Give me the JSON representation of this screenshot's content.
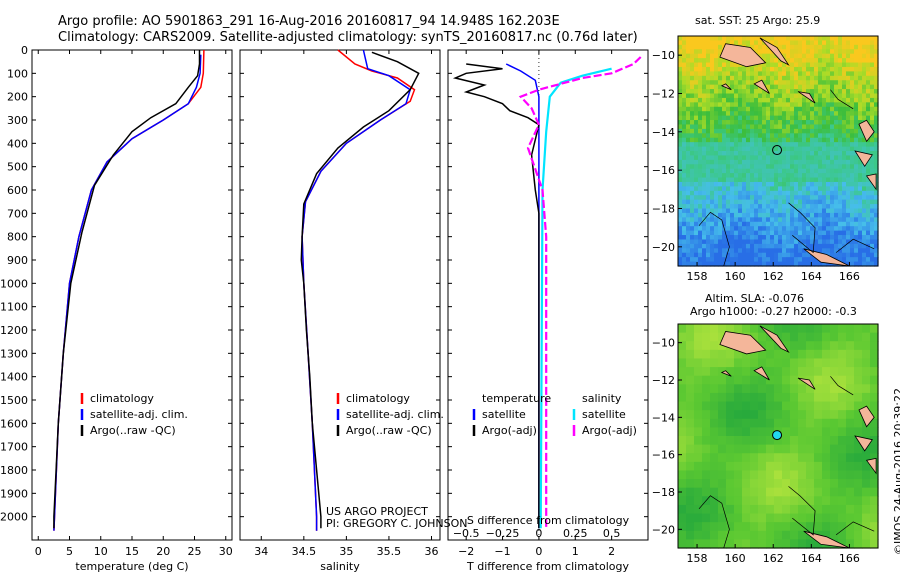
{
  "header": {
    "line1": "Argo profile: AO 5901863_291 16-Aug-2016 20160817_94 14.948S 162.203E",
    "line2": "Climatology: CARS2009. Satellite-adjusted climatology: synTS_20160817.nc (0.76d later)"
  },
  "credit": {
    "line1": "US ARGO PROJECT",
    "line2": "PI: GREGORY C. JOHNSON"
  },
  "timestamp": "©IMOS 24-Aug-2016 20:39:22",
  "colors": {
    "climatology": "#ff0000",
    "satellite": "#0000ff",
    "argo": "#000000",
    "sal_sat": "#00e5ff",
    "sal_argo": "#ff00ff"
  },
  "chart_data": [
    {
      "type": "line",
      "name": "temperature-profile",
      "xlabel": "temperature (deg C)",
      "xlim": [
        -1,
        31
      ],
      "ylim": [
        2100,
        0
      ],
      "xticks": [
        0,
        5,
        10,
        15,
        20,
        25,
        30
      ],
      "yticks": [
        0,
        100,
        200,
        300,
        400,
        500,
        600,
        700,
        800,
        900,
        1000,
        1100,
        1200,
        1300,
        1400,
        1500,
        1600,
        1700,
        1800,
        1900,
        2000
      ],
      "legend": [
        "climatology",
        "satellite-adj. clim.",
        "Argo(..raw -QC)"
      ],
      "series": [
        {
          "name": "climatology",
          "color": "#ff0000",
          "points": [
            [
              26.5,
              0
            ],
            [
              26.4,
              100
            ],
            [
              26,
              160
            ],
            [
              24,
              230
            ],
            [
              20,
              300
            ],
            [
              15,
              380
            ],
            [
              11,
              480
            ],
            [
              8.5,
              600
            ],
            [
              6.5,
              800
            ],
            [
              5,
              1000
            ],
            [
              4,
              1300
            ],
            [
              3.2,
              1600
            ],
            [
              2.6,
              2000
            ],
            [
              2.5,
              2060
            ]
          ]
        },
        {
          "name": "satellite-adj. clim.",
          "color": "#0000ff",
          "points": [
            [
              26,
              20
            ],
            [
              25.9,
              100
            ],
            [
              25.3,
              160
            ],
            [
              24,
              230
            ],
            [
              20,
              300
            ],
            [
              15,
              380
            ],
            [
              11,
              480
            ],
            [
              8.5,
              600
            ],
            [
              6.5,
              800
            ],
            [
              5,
              1000
            ],
            [
              4,
              1300
            ],
            [
              3.2,
              1600
            ],
            [
              2.6,
              2000
            ],
            [
              2.5,
              2060
            ]
          ]
        },
        {
          "name": "Argo(..raw -QC)",
          "color": "#000000",
          "points": [
            [
              25.8,
              0
            ],
            [
              25.8,
              60
            ],
            [
              25.5,
              110
            ],
            [
              24,
              160
            ],
            [
              22,
              230
            ],
            [
              18,
              290
            ],
            [
              15,
              350
            ],
            [
              12,
              450
            ],
            [
              9,
              580
            ],
            [
              7,
              780
            ],
            [
              5.2,
              1000
            ],
            [
              4,
              1300
            ],
            [
              3.2,
              1600
            ],
            [
              2.5,
              2000
            ],
            [
              2.5,
              2050
            ]
          ]
        }
      ]
    },
    {
      "type": "line",
      "name": "salinity-profile",
      "xlabel": "salinity",
      "xlim": [
        33.75,
        36.1
      ],
      "ylim": [
        2100,
        0
      ],
      "xticks": [
        34,
        34.5,
        35,
        35.5,
        36
      ],
      "legend": [
        "climatology",
        "satellite-adj. clim.",
        "Argo(..raw -QC)"
      ],
      "series": [
        {
          "name": "climatology",
          "color": "#ff0000",
          "points": [
            [
              34.9,
              0
            ],
            [
              35.1,
              60
            ],
            [
              35.3,
              90
            ],
            [
              35.6,
              120
            ],
            [
              35.8,
              170
            ],
            [
              35.75,
              220
            ],
            [
              35.4,
              300
            ],
            [
              35,
              400
            ],
            [
              34.7,
              520
            ],
            [
              34.52,
              650
            ],
            [
              34.48,
              800
            ],
            [
              34.5,
              1000
            ],
            [
              34.55,
              1300
            ],
            [
              34.6,
              1600
            ],
            [
              34.65,
              2000
            ],
            [
              34.65,
              2060
            ]
          ]
        },
        {
          "name": "satellite-adj. clim.",
          "color": "#0000ff",
          "points": [
            [
              35.2,
              0
            ],
            [
              35.25,
              80
            ],
            [
              35.5,
              110
            ],
            [
              35.75,
              170
            ],
            [
              35.7,
              230
            ],
            [
              35.4,
              300
            ],
            [
              35,
              400
            ],
            [
              34.7,
              520
            ],
            [
              34.52,
              650
            ],
            [
              34.48,
              800
            ],
            [
              34.5,
              1000
            ],
            [
              34.55,
              1300
            ],
            [
              34.6,
              1600
            ],
            [
              34.65,
              2000
            ],
            [
              34.65,
              2060
            ]
          ]
        },
        {
          "name": "Argo(..raw -QC)",
          "color": "#000000",
          "points": [
            [
              35.3,
              10
            ],
            [
              35.6,
              50
            ],
            [
              35.85,
              100
            ],
            [
              35.75,
              170
            ],
            [
              35.5,
              260
            ],
            [
              35.2,
              330
            ],
            [
              34.9,
              420
            ],
            [
              34.65,
              530
            ],
            [
              34.5,
              660
            ],
            [
              34.48,
              800
            ],
            [
              34.47,
              900
            ],
            [
              34.5,
              1000
            ],
            [
              34.53,
              1200
            ],
            [
              34.57,
              1400
            ],
            [
              34.6,
              1600
            ],
            [
              34.65,
              1800
            ],
            [
              34.7,
              2000
            ],
            [
              34.7,
              2050
            ]
          ]
        }
      ]
    },
    {
      "type": "line",
      "name": "difference-profile",
      "xlabel": "T difference from climatology",
      "xlabel_top": "S difference from climatology",
      "xlim": [
        -2.5,
        3
      ],
      "ylim": [
        2100,
        0
      ],
      "xticks": [
        -2,
        -1,
        0,
        1,
        2
      ],
      "xticks_top": [
        -0.5,
        -0.25,
        0,
        0.25,
        0.5
      ],
      "legend_left": {
        "title": "temperature",
        "items": [
          "satellite",
          "Argo(-adj)"
        ]
      },
      "legend_right": {
        "title": "salinity",
        "items": [
          "satellite",
          "Argo(-adj)"
        ]
      },
      "series": [
        {
          "name": "temperature satellite",
          "color": "#0000ff",
          "points": [
            [
              -0.9,
              60
            ],
            [
              -0.5,
              90
            ],
            [
              -0.1,
              130
            ],
            [
              0,
              200
            ],
            [
              0,
              500
            ],
            [
              0,
              2050
            ]
          ]
        },
        {
          "name": "temperature Argo(-adj)",
          "color": "#000000",
          "points": [
            [
              -2,
              60
            ],
            [
              -1,
              80
            ],
            [
              -2,
              100
            ],
            [
              -2.3,
              120
            ],
            [
              -1.5,
              150
            ],
            [
              -2,
              180
            ],
            [
              -1.5,
              200
            ],
            [
              -1,
              230
            ],
            [
              -0.8,
              260
            ],
            [
              -0.3,
              290
            ],
            [
              0,
              320
            ],
            [
              -0.2,
              450
            ],
            [
              -0.1,
              600
            ],
            [
              0,
              700
            ],
            [
              0,
              2050
            ]
          ]
        },
        {
          "name": "salinity satellite",
          "color": "#00e5ff",
          "points": [
            [
              2,
              80
            ],
            [
              1.2,
              110
            ],
            [
              0.6,
              140
            ],
            [
              0.3,
              200
            ],
            [
              0.2,
              350
            ],
            [
              0.1,
              600
            ],
            [
              0.05,
              2050
            ]
          ]
        },
        {
          "name": "salinity Argo(-adj)",
          "color": "#ff00ff",
          "points": [
            [
              2.8,
              30
            ],
            [
              2.6,
              60
            ],
            [
              2,
              100
            ],
            [
              1.2,
              120
            ],
            [
              0,
              170
            ],
            [
              -0.5,
              200
            ],
            [
              -0.2,
              250
            ],
            [
              0,
              320
            ],
            [
              -0.3,
              420
            ],
            [
              0.1,
              600
            ],
            [
              0.2,
              800
            ],
            [
              0.2,
              2050
            ]
          ]
        }
      ]
    },
    {
      "type": "heatmap",
      "name": "sst-map",
      "title": "sat. SST: 25 Argo: 25.9",
      "xlim": [
        157,
        167.5
      ],
      "ylim": [
        -21,
        -9
      ],
      "xticks": [
        158,
        160,
        162,
        164,
        166
      ],
      "yticks": [
        -10,
        -12,
        -14,
        -16,
        -18,
        -20
      ],
      "float_position": [
        162.2,
        -14.95
      ]
    },
    {
      "type": "heatmap",
      "name": "sla-map",
      "title_line1": "Altim. SLA: -0.076",
      "title_line2": "Argo h1000: -0.27 h2000: -0.3",
      "xlim": [
        157,
        167.5
      ],
      "ylim": [
        -21,
        -9
      ],
      "xticks": [
        158,
        160,
        162,
        164,
        166
      ],
      "yticks": [
        -10,
        -12,
        -14,
        -16,
        -18,
        -20
      ],
      "float_position": [
        162.2,
        -14.95
      ]
    }
  ]
}
